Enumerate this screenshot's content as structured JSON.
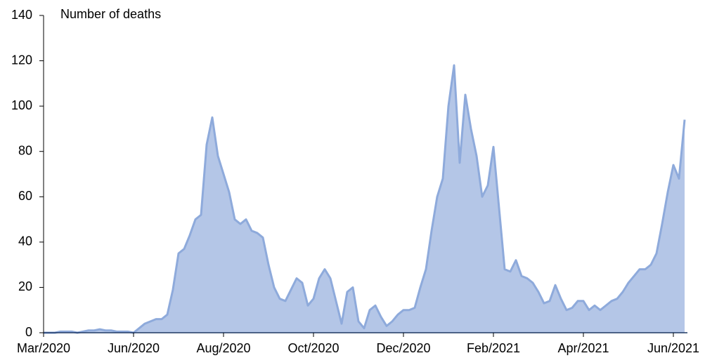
{
  "chart_data": {
    "type": "area",
    "y_label": "Number of deaths",
    "categories": [
      "Mar/2020",
      null,
      null,
      null,
      null,
      null,
      null,
      null,
      null,
      null,
      null,
      null,
      null,
      null,
      null,
      null,
      "Jun/2020",
      null,
      null,
      null,
      null,
      null,
      null,
      null,
      null,
      null,
      null,
      null,
      null,
      null,
      null,
      null,
      "Aug/2020",
      null,
      null,
      null,
      null,
      null,
      null,
      null,
      null,
      null,
      null,
      null,
      null,
      null,
      null,
      null,
      "Oct/2020",
      null,
      null,
      null,
      null,
      null,
      null,
      null,
      null,
      null,
      null,
      null,
      null,
      null,
      null,
      null,
      "Dec/2020",
      null,
      null,
      null,
      null,
      null,
      null,
      null,
      null,
      null,
      null,
      null,
      null,
      null,
      null,
      null,
      "Feb/2021",
      null,
      null,
      null,
      null,
      null,
      null,
      null,
      null,
      null,
      null,
      null,
      null,
      null,
      null,
      null,
      "Apr/2021",
      null,
      null,
      null,
      null,
      null,
      null,
      null,
      null,
      null,
      null,
      null,
      null,
      null,
      null,
      null,
      "Jun/2021",
      null,
      null
    ],
    "values": [
      0,
      0,
      0,
      0.5,
      0.5,
      0.5,
      0,
      0.5,
      1,
      1,
      1.5,
      1,
      1,
      0.5,
      0.5,
      0.5,
      0,
      2,
      4,
      5,
      6,
      6,
      8,
      19,
      35,
      37,
      43,
      50,
      52,
      83,
      95,
      78,
      70,
      62,
      50,
      48,
      50,
      45,
      44,
      42,
      30,
      20,
      15,
      14,
      19,
      24,
      22,
      12,
      15,
      24,
      28,
      24,
      14,
      4,
      18,
      20,
      5,
      2,
      10,
      12,
      7,
      3,
      5,
      8,
      10,
      10,
      11,
      20,
      28,
      45,
      60,
      68,
      100,
      118,
      75,
      105,
      90,
      78,
      60,
      65,
      82,
      55,
      28,
      27,
      32,
      25,
      24,
      22,
      18,
      13,
      14,
      21,
      15,
      10,
      11,
      14,
      14,
      10,
      12,
      10,
      12,
      14,
      15,
      18,
      22,
      25,
      28,
      28,
      30,
      35,
      48,
      62,
      74,
      68,
      94
    ],
    "color": "#b4c6e7",
    "line_color": "#8eaadb",
    "ylim": [
      0,
      140
    ],
    "yticks": [
      0,
      20,
      40,
      60,
      80,
      100,
      120,
      140
    ],
    "grid": false
  }
}
